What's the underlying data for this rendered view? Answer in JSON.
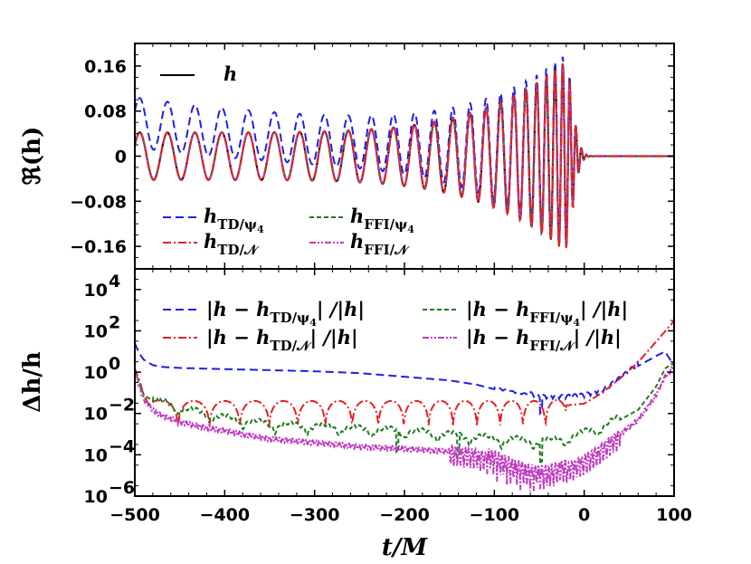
{
  "chart_data": [
    {
      "type": "line",
      "panel": "top",
      "ylabel": "ℜ(h)",
      "xlim": [
        -500,
        100
      ],
      "ylim": [
        -0.2,
        0.2
      ],
      "yticks": [
        -0.16,
        -0.08,
        0,
        0.08,
        0.16
      ],
      "ytick_labels": [
        "−0.16",
        "−0.08",
        "0",
        "0.08",
        "0.16"
      ],
      "series": [
        {
          "name": "h",
          "color": "#000000",
          "dash": "solid",
          "width": 2.2
        },
        {
          "name": "h_TD/ψ4",
          "color": "#1f1fe6",
          "dash": "9,5",
          "width": 2
        },
        {
          "name": "h_TD/N",
          "color": "#e61f1f",
          "dash": "9,3,2,3",
          "width": 2
        },
        {
          "name": "h_FFI/ψ4",
          "color": "#1e7d1e",
          "dash": "5,3",
          "width": 2
        },
        {
          "name": "h_FFI/N",
          "color": "#c03cc0",
          "dash": "7,2,2,2,2,2",
          "width": 2
        }
      ],
      "legend": {
        "top": [
          {
            "label": "h",
            "series": 0
          }
        ],
        "bottom": [
          {
            "label": "h",
            "sub": "TD/ψ",
            "subsub": "4",
            "series": 1
          },
          {
            "label": "h",
            "sub": "FFI/ψ",
            "subsub": "4",
            "series": 3
          },
          {
            "label": "h",
            "sub": "TD/𝒩",
            "subsub": "",
            "series": 2
          },
          {
            "label": "h",
            "sub": "FFI/𝒩",
            "subsub": "",
            "series": 4
          }
        ]
      }
    },
    {
      "type": "line",
      "panel": "bottom",
      "xlabel": "t/M",
      "ylabel": "Δh/h",
      "yscale": "log",
      "xlim": [
        -500,
        100
      ],
      "ylim": [
        1e-06,
        100000.0
      ],
      "xticks": [
        -500,
        -400,
        -300,
        -200,
        -100,
        0,
        100
      ],
      "xtick_labels": [
        "−500",
        "−400",
        "−300",
        "−200",
        "−100",
        "0",
        "100"
      ],
      "yticks_exp": [
        -6,
        -4,
        -2,
        0,
        2,
        4
      ],
      "series": [
        {
          "name": "|h − h_TD/ψ4| / |h|",
          "color": "#1f1fe6",
          "dash": "9,5",
          "points": [
            [
              -500,
              25
            ],
            [
              -495,
              8
            ],
            [
              -490,
              4
            ],
            [
              -480,
              2.2
            ],
            [
              -470,
              1.8
            ],
            [
              -450,
              1.6
            ],
            [
              -400,
              1.4
            ],
            [
              -350,
              1.25
            ],
            [
              -300,
              1.1
            ],
            [
              -250,
              0.9
            ],
            [
              -200,
              0.6
            ],
            [
              -150,
              0.4
            ],
            [
              -120,
              0.25
            ],
            [
              -100,
              0.15
            ],
            [
              -80,
              0.1
            ],
            [
              -60,
              0.07
            ],
            [
              -50,
              0.05
            ],
            [
              -40,
              0.05
            ],
            [
              -20,
              0.05
            ],
            [
              0,
              0.06
            ],
            [
              20,
              0.1
            ],
            [
              40,
              0.4
            ],
            [
              60,
              2
            ],
            [
              80,
              6
            ],
            [
              90,
              10
            ],
            [
              100,
              2
            ]
          ]
        },
        {
          "name": "|h − h_TD/N| / |h|",
          "color": "#e61f1f",
          "dash": "9,3,2,3",
          "points": [
            [
              -500,
              1.5
            ],
            [
              -495,
              0.4
            ],
            [
              -490,
              0.08
            ],
            [
              -485,
              0.03
            ],
            [
              -470,
              0.02
            ],
            [
              -300,
              0.02
            ],
            [
              -100,
              0.02
            ],
            [
              -40,
              0.02
            ],
            [
              0,
              0.03
            ],
            [
              20,
              0.1
            ],
            [
              40,
              0.5
            ],
            [
              60,
              3
            ],
            [
              80,
              30
            ],
            [
              100,
              300
            ]
          ]
        },
        {
          "name": "|h − h_FFI/ψ4| / |h|",
          "color": "#1e7d1e",
          "dash": "5,3",
          "points": [
            [
              -500,
              1.2
            ],
            [
              -495,
              0.3
            ],
            [
              -490,
              0.08
            ],
            [
              -480,
              0.04
            ],
            [
              -470,
              0.03
            ],
            [
              -450,
              0.015
            ],
            [
              -420,
              0.008
            ],
            [
              -400,
              0.005
            ],
            [
              -350,
              0.0025
            ],
            [
              -300,
              0.002
            ],
            [
              -250,
              0.0015
            ],
            [
              -200,
              0.0012
            ],
            [
              -150,
              0.0008
            ],
            [
              -100,
              0.0005
            ],
            [
              -80,
              0.00045
            ],
            [
              -60,
              0.0004
            ],
            [
              -40,
              0.0004
            ],
            [
              -20,
              0.0005
            ],
            [
              0,
              0.001
            ],
            [
              20,
              0.002
            ],
            [
              40,
              0.005
            ],
            [
              60,
              0.015
            ],
            [
              80,
              0.2
            ],
            [
              90,
              1.5
            ],
            [
              100,
              3
            ]
          ]
        },
        {
          "name": "|h − h_FFI/N| / |h|",
          "color": "#c03cc0",
          "dash": "7,2,2,2,2,2",
          "points": [
            [
              -500,
              1.0
            ],
            [
              -495,
              0.2
            ],
            [
              -490,
              0.05
            ],
            [
              -480,
              0.015
            ],
            [
              -470,
              0.008
            ],
            [
              -450,
              0.004
            ],
            [
              -420,
              0.002
            ],
            [
              -400,
              0.0015
            ],
            [
              -380,
              0.001
            ],
            [
              -350,
              0.0006
            ],
            [
              -300,
              0.0004
            ],
            [
              -250,
              0.00025
            ],
            [
              -200,
              0.0002
            ],
            [
              -150,
              0.00015
            ],
            [
              -120,
              0.0001
            ],
            [
              -100,
              5e-05
            ],
            [
              -80,
              2e-05
            ],
            [
              -60,
              1e-05
            ],
            [
              -40,
              1e-05
            ],
            [
              -20,
              2e-05
            ],
            [
              0,
              5e-05
            ],
            [
              20,
              0.0002
            ],
            [
              40,
              0.001
            ],
            [
              60,
              0.005
            ],
            [
              80,
              0.08
            ],
            [
              90,
              0.6
            ],
            [
              100,
              2
            ]
          ]
        }
      ],
      "legend": [
        {
          "prefix": "|h − h",
          "sub": "TD/ψ",
          "subsub": "4",
          "suffix": "| /|h|",
          "series": 0
        },
        {
          "prefix": "|h − h",
          "sub": "FFI/ψ",
          "subsub": "4",
          "suffix": "| /|h|",
          "series": 2
        },
        {
          "prefix": "|h − h",
          "sub": "TD/𝒩",
          "subsub": "",
          "suffix": "| /|h|",
          "series": 1
        },
        {
          "prefix": "|h − h",
          "sub": "FFI/𝒩",
          "subsub": "",
          "suffix": "| /|h|",
          "series": 3
        }
      ]
    }
  ]
}
